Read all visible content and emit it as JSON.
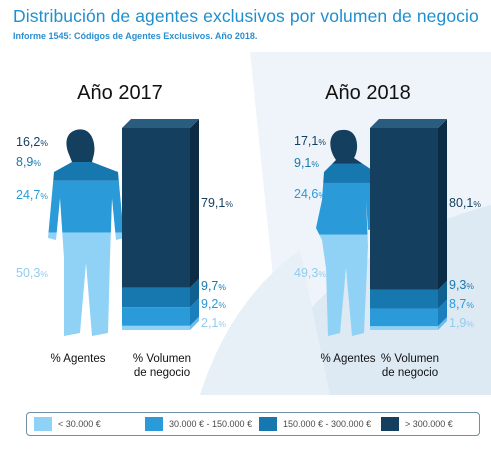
{
  "header": {
    "title": "Distribución de agentes exclusivos por volumen de negocio",
    "subtitle": "Informe 1545: Códigos de Agentes Exclusivos. Año 2018."
  },
  "colors": {
    "tier1": "#8fd2f6",
    "tier2": "#2a9ad8",
    "tier3": "#1778b0",
    "tier4": "#143f5e"
  },
  "chart_data": {
    "type": "bar",
    "categories": [
      "< 30.000 €",
      "30.000 € - 150.000 €",
      "150.000 € - 300.000 €",
      "> 300.000 €"
    ],
    "panels": [
      {
        "year_label": "Año 2017",
        "agents_label": "% Agentes",
        "volume_label_1": "% Volumen",
        "volume_label_2": "de negocio",
        "agents_pct": [
          50.3,
          24.7,
          8.9,
          16.2
        ],
        "agents_pct_labels": [
          "50,3",
          "24,7",
          "8,9",
          "16,2"
        ],
        "volume_pct": [
          2.1,
          9.2,
          9.7,
          79.1
        ],
        "volume_pct_labels": [
          "2,1",
          "9,2",
          "9,7",
          "79,1"
        ]
      },
      {
        "year_label": "Año 2018",
        "agents_label": "% Agentes",
        "volume_label_1": "% Volumen",
        "volume_label_2": "de negocio",
        "agents_pct": [
          49.3,
          24.6,
          9.1,
          17.1
        ],
        "agents_pct_labels": [
          "49,3",
          "24,6",
          "9,1",
          "17,1"
        ],
        "volume_pct": [
          1.9,
          8.7,
          9.3,
          80.1
        ],
        "volume_pct_labels": [
          "1,9",
          "8,7",
          "9,3",
          "80,1"
        ]
      }
    ],
    "percent_symbol": "%",
    "legend": [
      "< 30.000 €",
      "30.000 € - 150.000 €",
      "150.000 € - 300.000 €",
      "> 300.000 €"
    ]
  }
}
